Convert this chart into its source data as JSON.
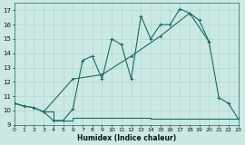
{
  "xlabel": "Humidex (Indice chaleur)",
  "bg_color": "#cce8e4",
  "grid_color": "#b0d8d2",
  "line_color": "#1a6b60",
  "line1_x": [
    0,
    1,
    2,
    3,
    4,
    5,
    6,
    7,
    8,
    9,
    10,
    11,
    12,
    13,
    14,
    15,
    16,
    17,
    18,
    19,
    20,
    21,
    22,
    23
  ],
  "line1_y": [
    10.5,
    10.3,
    10.2,
    9.9,
    9.3,
    9.3,
    10.1,
    13.5,
    13.8,
    12.2,
    15.0,
    14.6,
    12.2,
    16.6,
    15.0,
    16.0,
    16.0,
    17.1,
    16.8,
    16.3,
    14.8,
    10.9,
    10.5,
    9.4
  ],
  "line2_x": [
    0,
    1,
    2,
    3,
    6,
    9,
    12,
    15,
    18,
    20
  ],
  "line2_y": [
    10.5,
    10.3,
    10.2,
    9.9,
    12.2,
    12.5,
    13.8,
    15.2,
    16.8,
    14.8
  ],
  "line3_x": [
    3,
    4,
    5,
    6,
    7,
    8,
    9,
    10,
    11,
    12,
    13,
    14,
    15,
    16,
    17,
    18,
    19,
    20,
    21,
    22,
    23
  ],
  "line3_y": [
    9.9,
    9.3,
    9.3,
    9.5,
    9.5,
    9.5,
    9.5,
    9.5,
    9.5,
    9.5,
    9.5,
    9.4,
    9.4,
    9.4,
    9.4,
    9.4,
    9.4,
    9.4,
    9.4,
    9.4,
    9.4
  ],
  "xlim": [
    0,
    23
  ],
  "ylim": [
    9.0,
    17.5
  ],
  "yticks": [
    9,
    10,
    11,
    12,
    13,
    14,
    15,
    16,
    17
  ],
  "xticks": [
    0,
    1,
    2,
    3,
    4,
    5,
    6,
    7,
    8,
    9,
    10,
    11,
    12,
    13,
    14,
    15,
    16,
    17,
    18,
    19,
    20,
    21,
    22,
    23
  ]
}
